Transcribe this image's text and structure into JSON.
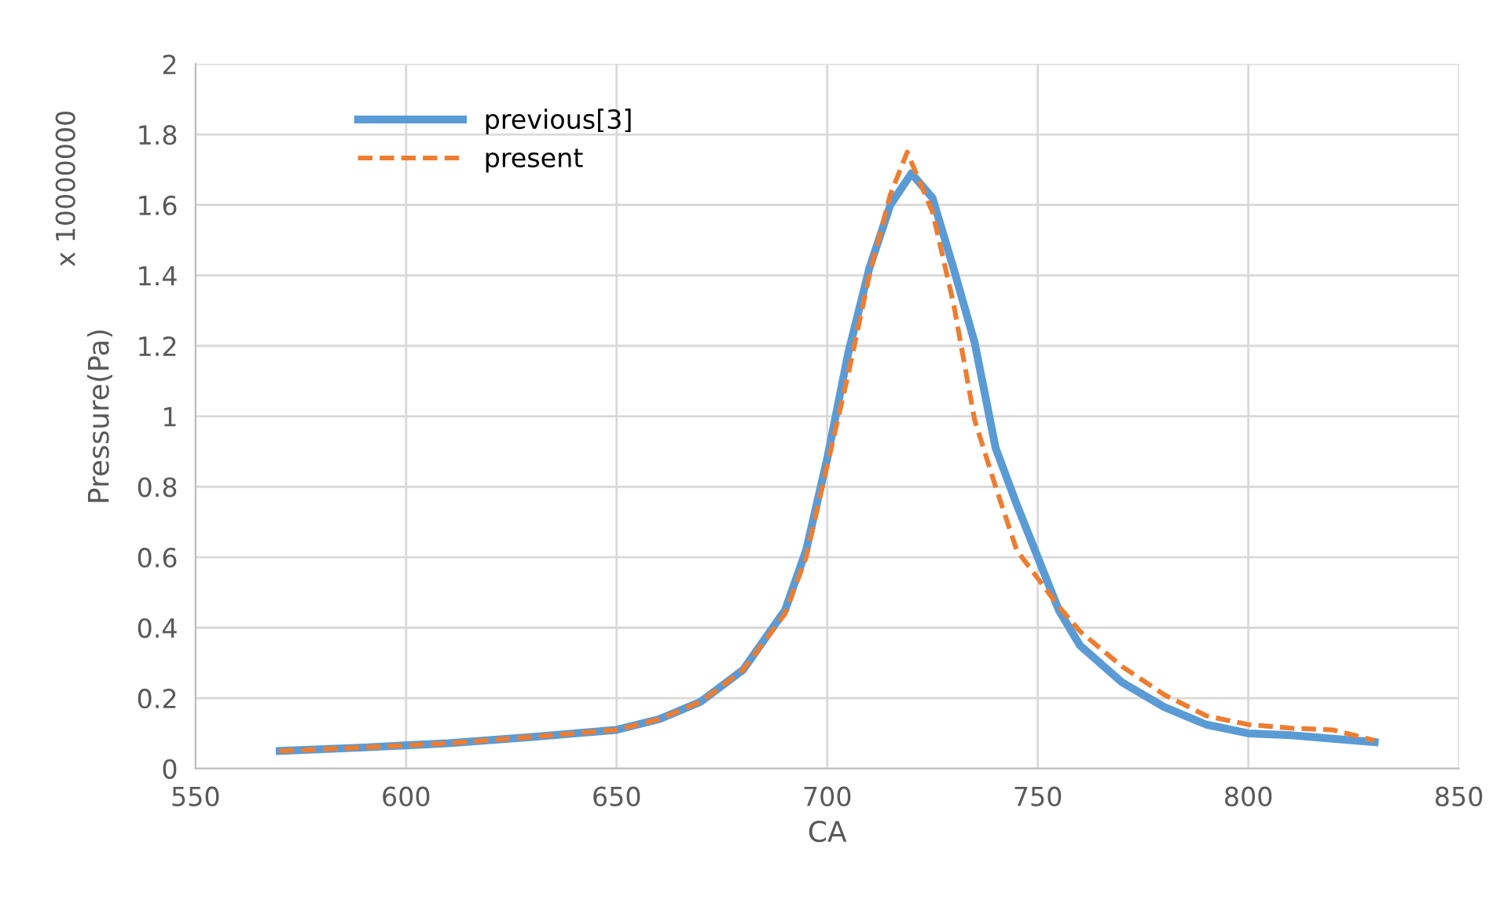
{
  "chart_data": {
    "type": "line",
    "xlabel": "CA",
    "ylabel": "Pressure(Pa)",
    "annotations": [
      "x 10000000"
    ],
    "xlim": [
      550,
      850
    ],
    "xticks": [
      550,
      600,
      650,
      700,
      750,
      800,
      850
    ],
    "ylim": [
      0,
      2
    ],
    "yticks": [
      0,
      0.2,
      0.4,
      0.6,
      0.8,
      1,
      1.2,
      1.4,
      1.6,
      1.8,
      2
    ],
    "grid": true,
    "legend": "top left",
    "marker": "none",
    "series": [
      {
        "name": "previous[3]",
        "color": "#5b9bd5",
        "line_style": "solid",
        "x": [
          570,
          590,
          610,
          630,
          650,
          660,
          670,
          680,
          690,
          695,
          700,
          705,
          710,
          715,
          720,
          725,
          730,
          735,
          740,
          745,
          750,
          755,
          760,
          770,
          780,
          790,
          800,
          810,
          820,
          830
        ],
        "values": [
          0.05,
          0.06,
          0.072,
          0.09,
          0.11,
          0.14,
          0.19,
          0.28,
          0.45,
          0.62,
          0.88,
          1.18,
          1.42,
          1.6,
          1.69,
          1.62,
          1.42,
          1.21,
          0.91,
          0.75,
          0.6,
          0.45,
          0.35,
          0.245,
          0.175,
          0.125,
          0.1,
          0.095,
          0.085,
          0.075
        ]
      },
      {
        "name": "present",
        "color": "#ed7d31",
        "line_style": "dashed",
        "x": [
          570,
          590,
          610,
          630,
          650,
          660,
          670,
          680,
          690,
          695,
          700,
          705,
          710,
          715,
          719,
          725,
          730,
          735,
          740,
          745,
          750,
          755,
          760,
          770,
          780,
          790,
          800,
          810,
          820,
          830
        ],
        "values": [
          0.05,
          0.06,
          0.072,
          0.09,
          0.11,
          0.14,
          0.19,
          0.28,
          0.44,
          0.6,
          0.86,
          1.12,
          1.4,
          1.63,
          1.75,
          1.58,
          1.32,
          0.99,
          0.8,
          0.62,
          0.54,
          0.46,
          0.39,
          0.29,
          0.21,
          0.15,
          0.125,
          0.115,
          0.11,
          0.08
        ]
      }
    ]
  }
}
